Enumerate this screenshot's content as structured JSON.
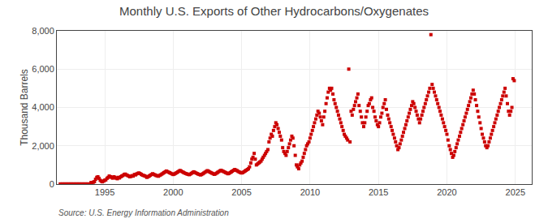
{
  "chart_data": {
    "type": "scatter",
    "title": "Monthly U.S. Exports of Other Hydrocarbons/Oxygenates",
    "ylabel": "Thousand Barrels",
    "annotations": [
      "Source: U.S. Energy Information Administration"
    ],
    "color": "#CC0000",
    "marker": "square",
    "grid": true,
    "xlim": [
      1991.5,
      2026.2
    ],
    "ylim": [
      0,
      8000
    ],
    "xticks": [
      1995,
      2000,
      2005,
      2010,
      2015,
      2020,
      2025
    ],
    "yticks": [
      0,
      {
        "value": 2000,
        "label": "2,000"
      },
      {
        "value": 4000,
        "label": "4,000"
      },
      {
        "value": 6000,
        "label": "6,000"
      },
      {
        "value": 8000,
        "label": "8,000"
      }
    ],
    "x": [
      1991.75,
      1991.83,
      1991.92,
      1992.0,
      1992.08,
      1992.17,
      1992.25,
      1992.33,
      1992.42,
      1992.5,
      1992.58,
      1992.67,
      1992.75,
      1992.83,
      1992.92,
      1993.0,
      1993.08,
      1993.17,
      1993.25,
      1993.33,
      1993.42,
      1993.5,
      1993.58,
      1993.67,
      1993.75,
      1993.83,
      1993.92,
      1994.0,
      1994.08,
      1994.17,
      1994.25,
      1994.33,
      1994.42,
      1994.5,
      1994.58,
      1994.67,
      1994.75,
      1994.83,
      1994.92,
      1995.0,
      1995.08,
      1995.17,
      1995.25,
      1995.33,
      1995.42,
      1995.5,
      1995.58,
      1995.67,
      1995.75,
      1995.83,
      1995.92,
      1996.0,
      1996.08,
      1996.17,
      1996.25,
      1996.33,
      1996.42,
      1996.5,
      1996.58,
      1996.67,
      1996.75,
      1996.83,
      1996.92,
      1997.0,
      1997.08,
      1997.17,
      1997.25,
      1997.33,
      1997.42,
      1997.5,
      1997.58,
      1997.67,
      1997.75,
      1997.83,
      1997.92,
      1998.0,
      1998.08,
      1998.17,
      1998.25,
      1998.33,
      1998.42,
      1998.5,
      1998.58,
      1998.67,
      1998.75,
      1998.83,
      1998.92,
      1999.0,
      1999.08,
      1999.17,
      1999.25,
      1999.33,
      1999.42,
      1999.5,
      1999.58,
      1999.67,
      1999.75,
      1999.83,
      1999.92,
      2000.0,
      2000.08,
      2000.17,
      2000.25,
      2000.33,
      2000.42,
      2000.5,
      2000.58,
      2000.67,
      2000.75,
      2000.83,
      2000.92,
      2001.0,
      2001.08,
      2001.17,
      2001.25,
      2001.33,
      2001.42,
      2001.5,
      2001.58,
      2001.67,
      2001.75,
      2001.83,
      2001.92,
      2002.0,
      2002.08,
      2002.17,
      2002.25,
      2002.33,
      2002.42,
      2002.5,
      2002.58,
      2002.67,
      2002.75,
      2002.83,
      2002.92,
      2003.0,
      2003.08,
      2003.17,
      2003.25,
      2003.33,
      2003.42,
      2003.5,
      2003.58,
      2003.67,
      2003.75,
      2003.83,
      2003.92,
      2004.0,
      2004.08,
      2004.17,
      2004.25,
      2004.33,
      2004.42,
      2004.5,
      2004.58,
      2004.67,
      2004.75,
      2004.83,
      2004.92,
      2005.0,
      2005.08,
      2005.17,
      2005.25,
      2005.33,
      2005.42,
      2005.5,
      2005.58,
      2005.67,
      2005.75,
      2005.83,
      2005.92,
      2006.0,
      2006.08,
      2006.17,
      2006.25,
      2006.33,
      2006.42,
      2006.5,
      2006.58,
      2006.67,
      2006.75,
      2006.83,
      2006.92,
      2007.0,
      2007.08,
      2007.17,
      2007.25,
      2007.33,
      2007.42,
      2007.5,
      2007.58,
      2007.67,
      2007.75,
      2007.83,
      2007.92,
      2008.0,
      2008.08,
      2008.17,
      2008.25,
      2008.33,
      2008.42,
      2008.5,
      2008.58,
      2008.67,
      2008.75,
      2008.83,
      2008.92,
      2009.0,
      2009.08,
      2009.17,
      2009.25,
      2009.33,
      2009.42,
      2009.5,
      2009.58,
      2009.67,
      2009.75,
      2009.83,
      2009.92,
      2010.0,
      2010.08,
      2010.17,
      2010.25,
      2010.33,
      2010.42,
      2010.5,
      2010.58,
      2010.67,
      2010.75,
      2010.83,
      2010.92,
      2011.0,
      2011.08,
      2011.17,
      2011.25,
      2011.33,
      2011.42,
      2011.5,
      2011.58,
      2011.67,
      2011.75,
      2011.83,
      2011.92,
      2012.0,
      2012.08,
      2012.17,
      2012.25,
      2012.33,
      2012.42,
      2012.5,
      2012.58,
      2012.67,
      2012.75,
      2012.83,
      2012.92,
      2013.0,
      2013.08,
      2013.17,
      2013.25,
      2013.33,
      2013.42,
      2013.5,
      2013.58,
      2013.67,
      2013.75,
      2013.83,
      2013.92,
      2014.0,
      2014.08,
      2014.17,
      2014.25,
      2014.33,
      2014.42,
      2014.5,
      2014.58,
      2014.67,
      2014.75,
      2014.83,
      2014.92,
      2015.0,
      2015.08,
      2015.17,
      2015.25,
      2015.33,
      2015.42,
      2015.5,
      2015.58,
      2015.67,
      2015.75,
      2015.83,
      2015.92,
      2016.0,
      2016.08,
      2016.17,
      2016.25,
      2016.33,
      2016.42,
      2016.5,
      2016.58,
      2016.67,
      2016.75,
      2016.83,
      2016.92,
      2017.0,
      2017.08,
      2017.17,
      2017.25,
      2017.33,
      2017.42,
      2017.5,
      2017.58,
      2017.67,
      2017.75,
      2017.83,
      2017.92,
      2018.0,
      2018.08,
      2018.17,
      2018.25,
      2018.33,
      2018.42,
      2018.5,
      2018.58,
      2018.67,
      2018.75,
      2018.83,
      2018.92,
      2019.0,
      2019.08,
      2019.17,
      2019.25,
      2019.33,
      2019.42,
      2019.5,
      2019.58,
      2019.67,
      2019.75,
      2019.83,
      2019.92,
      2020.0,
      2020.08,
      2020.17,
      2020.25,
      2020.33,
      2020.42,
      2020.5,
      2020.58,
      2020.67,
      2020.75,
      2020.83,
      2020.92,
      2021.0,
      2021.08,
      2021.17,
      2021.25,
      2021.33,
      2021.42,
      2021.5,
      2021.58,
      2021.67,
      2021.75,
      2021.83,
      2021.92,
      2022.0,
      2022.08,
      2022.17,
      2022.25,
      2022.33,
      2022.42,
      2022.5,
      2022.58,
      2022.67,
      2022.75,
      2022.83,
      2022.92,
      2023.0,
      2023.08,
      2023.17,
      2023.25,
      2023.33,
      2023.42,
      2023.5,
      2023.58,
      2023.67,
      2023.75,
      2023.83,
      2023.92,
      2024.0,
      2024.08,
      2024.17,
      2024.25,
      2024.33,
      2024.42,
      2024.5,
      2024.58,
      2024.67,
      2024.75,
      2024.83,
      2024.92
    ],
    "values": [
      5,
      5,
      5,
      5,
      5,
      5,
      5,
      5,
      5,
      5,
      5,
      5,
      5,
      5,
      5,
      5,
      5,
      5,
      5,
      5,
      5,
      5,
      5,
      5,
      5,
      5,
      5,
      80,
      60,
      100,
      130,
      250,
      350,
      380,
      300,
      200,
      150,
      120,
      160,
      200,
      220,
      300,
      350,
      420,
      380,
      350,
      310,
      380,
      350,
      310,
      280,
      350,
      320,
      380,
      420,
      450,
      500,
      520,
      480,
      450,
      420,
      380,
      400,
      440,
      420,
      500,
      480,
      530,
      560,
      580,
      550,
      510,
      470,
      450,
      430,
      400,
      350,
      380,
      420,
      460,
      500,
      540,
      510,
      480,
      450,
      430,
      410,
      450,
      480,
      520,
      560,
      600,
      640,
      680,
      650,
      620,
      590,
      560,
      530,
      500,
      520,
      560,
      590,
      630,
      670,
      710,
      680,
      640,
      610,
      580,
      550,
      530,
      510,
      490,
      520,
      560,
      600,
      640,
      610,
      580,
      550,
      520,
      500,
      480,
      500,
      540,
      580,
      620,
      660,
      700,
      670,
      630,
      600,
      570,
      540,
      510,
      530,
      570,
      610,
      650,
      690,
      720,
      690,
      660,
      630,
      600,
      570,
      540,
      560,
      600,
      640,
      680,
      720,
      760,
      730,
      700,
      660,
      630,
      600,
      580,
      600,
      640,
      680,
      720,
      760,
      800,
      900,
      1100,
      1300,
      1400,
      1600,
      1300,
      1000,
      1050,
      1100,
      1150,
      1200,
      1300,
      1400,
      1500,
      1600,
      1700,
      1800,
      2200,
      2400,
      2600,
      2500,
      2800,
      3000,
      3200,
      3100,
      2900,
      2700,
      2500,
      2300,
      1900,
      1700,
      1600,
      1500,
      1700,
      1900,
      2100,
      2300,
      2500,
      2400,
      2000,
      1500,
      1000,
      900,
      800,
      1000,
      1100,
      1200,
      1400,
      1600,
      1800,
      2000,
      2100,
      2200,
      2400,
      2600,
      2800,
      3000,
      3200,
      3400,
      3600,
      3800,
      3700,
      3500,
      3300,
      3100,
      3500,
      3800,
      4200,
      4500,
      4800,
      5000,
      4900,
      5000,
      4700,
      4400,
      4200,
      4000,
      3800,
      3600,
      3400,
      3200,
      3000,
      2800,
      2600,
      2500,
      2400,
      2300,
      6000,
      2200,
      3800,
      3600,
      3900,
      4100,
      4300,
      4500,
      4700,
      4100,
      3800,
      3500,
      3200,
      3000,
      3200,
      3500,
      3800,
      4100,
      4200,
      4400,
      4500,
      4000,
      3800,
      3500,
      3300,
      3100,
      3000,
      3200,
      3500,
      3700,
      4000,
      4200,
      4400,
      3900,
      3600,
      3400,
      3200,
      3000,
      2800,
      2600,
      2400,
      2200,
      2000,
      1800,
      1900,
      2100,
      2300,
      2500,
      2700,
      2900,
      3100,
      3300,
      3500,
      3700,
      3900,
      4100,
      4300,
      4200,
      4000,
      3800,
      3600,
      3400,
      3200,
      3400,
      3600,
      3800,
      4000,
      4200,
      4400,
      4600,
      4800,
      5000,
      7800,
      5200,
      5000,
      4800,
      4600,
      4400,
      4200,
      4000,
      3800,
      3600,
      3400,
      3200,
      3000,
      2800,
      2600,
      2300,
      2000,
      1800,
      1600,
      1400,
      1500,
      1700,
      1900,
      2100,
      2300,
      2500,
      2700,
      2900,
      3100,
      3300,
      3500,
      3700,
      3900,
      4100,
      4300,
      4500,
      4700,
      4900,
      4700,
      4400,
      4100,
      3800,
      3500,
      3200,
      2900,
      2600,
      2400,
      2200,
      2000,
      1900,
      2000,
      2200,
      2400,
      2600,
      2800,
      3000,
      3200,
      3400,
      3600,
      3800,
      4000,
      4200,
      4400,
      4600,
      4800,
      5000,
      4600,
      4200,
      3800,
      3600,
      3800,
      4000,
      5500,
      5400
    ]
  }
}
